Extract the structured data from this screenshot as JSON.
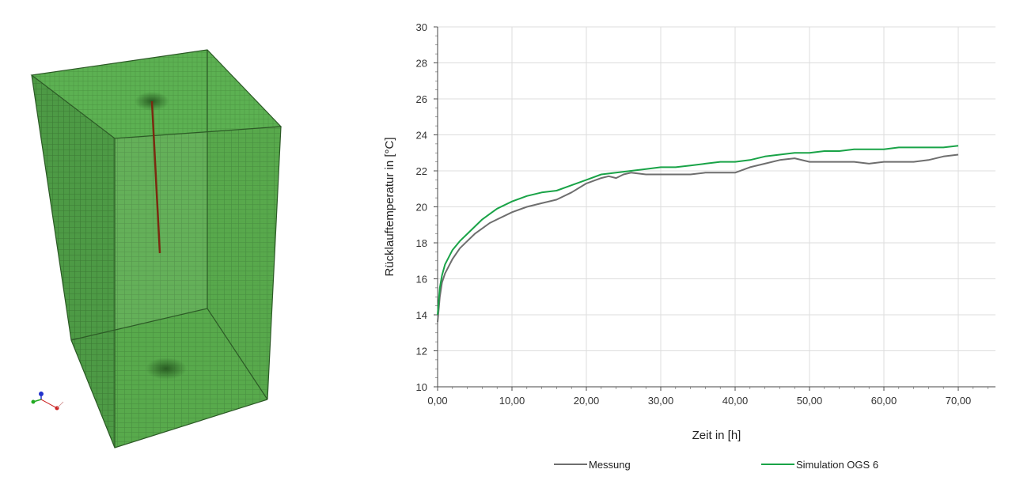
{
  "mesh_view": {
    "description_icon": "mesh-block-icon",
    "colors": {
      "face_front": "#57a94b",
      "face_side": "#4a9542",
      "face_top": "#5cb152",
      "edges": "#2c5a26",
      "borehole": "#7a2a10"
    }
  },
  "chart_data": {
    "type": "line",
    "title": "",
    "xlabel": "Zeit in [h]",
    "ylabel": "Rücklauftemperatur in [°C]",
    "xlim": [
      0,
      75
    ],
    "ylim": [
      10,
      30
    ],
    "x_ticks": [
      0,
      10,
      20,
      30,
      40,
      50,
      60,
      70
    ],
    "x_tick_labels": [
      "0,00",
      "10,00",
      "20,00",
      "30,00",
      "40,00",
      "50,00",
      "60,00",
      "70,00"
    ],
    "y_ticks": [
      10,
      12,
      14,
      16,
      18,
      20,
      22,
      24,
      26,
      28,
      30
    ],
    "y_tick_labels": [
      "10",
      "12",
      "14",
      "16",
      "18",
      "20",
      "22",
      "24",
      "26",
      "28",
      "30"
    ],
    "grid": true,
    "legend_position": "bottom",
    "series": [
      {
        "name": "Messung",
        "color": "#6e6e6e",
        "x": [
          0,
          0.3,
          0.6,
          1,
          2,
          3,
          4,
          5,
          6,
          7,
          8,
          10,
          12,
          14,
          16,
          18,
          20,
          22,
          23,
          24,
          25,
          26,
          28,
          30,
          32,
          34,
          36,
          38,
          40,
          42,
          44,
          46,
          48,
          50,
          52,
          54,
          56,
          58,
          60,
          62,
          64,
          66,
          68,
          70
        ],
        "y": [
          13.6,
          15.0,
          15.8,
          16.3,
          17.1,
          17.7,
          18.1,
          18.5,
          18.8,
          19.1,
          19.3,
          19.7,
          20.0,
          20.2,
          20.4,
          20.8,
          21.3,
          21.6,
          21.7,
          21.6,
          21.8,
          21.9,
          21.8,
          21.8,
          21.8,
          21.8,
          21.9,
          21.9,
          21.9,
          22.2,
          22.4,
          22.6,
          22.7,
          22.5,
          22.5,
          22.5,
          22.5,
          22.4,
          22.5,
          22.5,
          22.5,
          22.6,
          22.8,
          22.9
        ]
      },
      {
        "name": "Simulation OGS 6",
        "color": "#19a347",
        "x": [
          0,
          0.3,
          0.6,
          1,
          2,
          3,
          4,
          5,
          6,
          7,
          8,
          10,
          12,
          14,
          16,
          18,
          20,
          22,
          24,
          26,
          28,
          30,
          32,
          34,
          36,
          38,
          40,
          42,
          44,
          46,
          48,
          50,
          52,
          54,
          56,
          58,
          60,
          62,
          64,
          66,
          68,
          70
        ],
        "y": [
          14.0,
          15.5,
          16.2,
          16.8,
          17.6,
          18.1,
          18.5,
          18.9,
          19.3,
          19.6,
          19.9,
          20.3,
          20.6,
          20.8,
          20.9,
          21.2,
          21.5,
          21.8,
          21.9,
          22.0,
          22.1,
          22.2,
          22.2,
          22.3,
          22.4,
          22.5,
          22.5,
          22.6,
          22.8,
          22.9,
          23.0,
          23.0,
          23.1,
          23.1,
          23.2,
          23.2,
          23.2,
          23.3,
          23.3,
          23.3,
          23.3,
          23.4
        ]
      }
    ]
  }
}
